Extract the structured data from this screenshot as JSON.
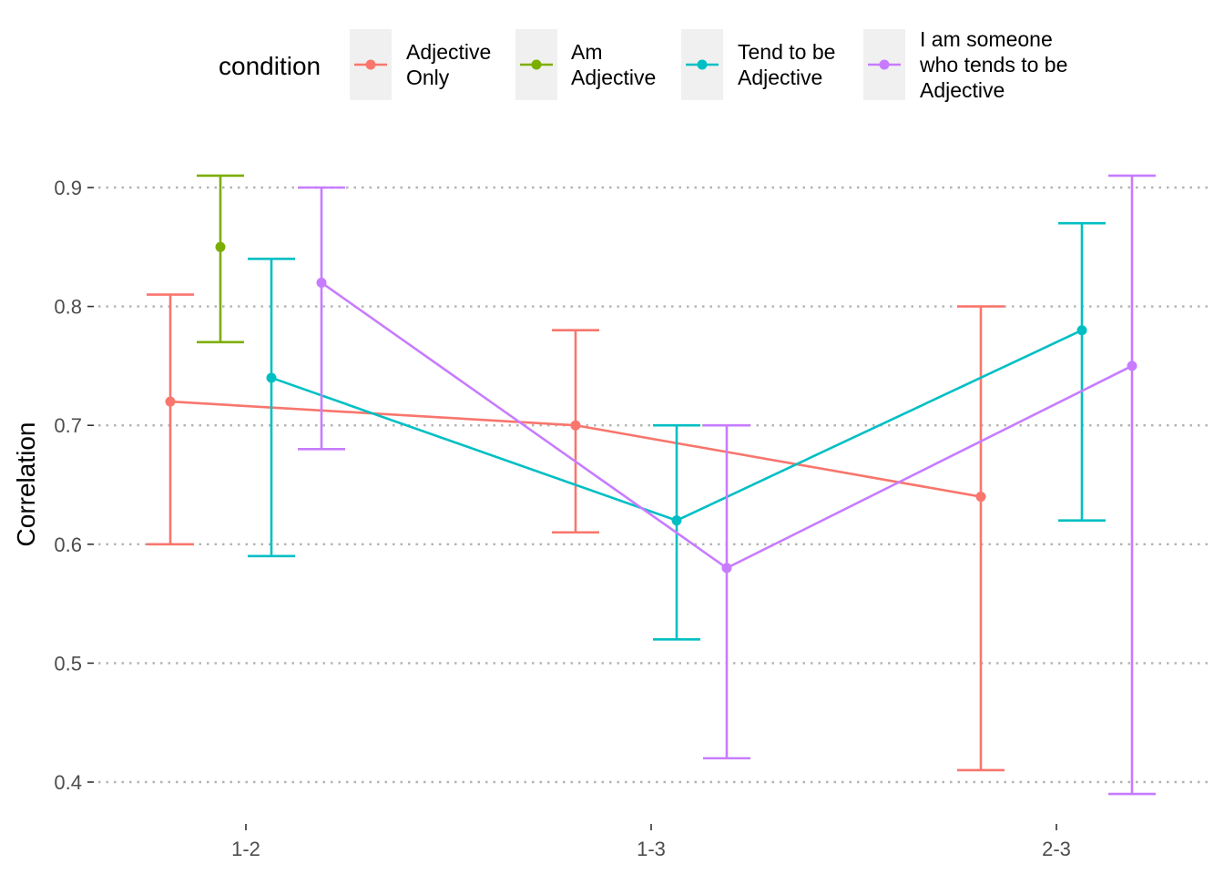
{
  "chart_data": {
    "type": "line",
    "title": "",
    "xlabel": "",
    "ylabel": "Correlation",
    "categories": [
      "1-2",
      "1-3",
      "2-3"
    ],
    "ylim": [
      0.38,
      0.93
    ],
    "yticks": [
      "0.4",
      "0.5",
      "0.6",
      "0.7",
      "0.8",
      "0.9"
    ],
    "grid": "horizontal dotted",
    "legend": {
      "title": "condition",
      "position": "top"
    },
    "series": [
      {
        "name": "Adjective\nOnly",
        "color": "#F8766D",
        "values": [
          0.72,
          0.7,
          0.64
        ],
        "lower": [
          0.6,
          0.61,
          0.41
        ],
        "upper": [
          0.81,
          0.78,
          0.8
        ]
      },
      {
        "name": "Am\nAdjective",
        "color": "#7CAE00",
        "values": [
          0.85,
          null,
          null
        ],
        "lower": [
          0.77,
          null,
          null
        ],
        "upper": [
          0.91,
          null,
          null
        ]
      },
      {
        "name": "Tend to be\nAdjective",
        "color": "#00BFC4",
        "values": [
          0.74,
          0.62,
          0.78
        ],
        "lower": [
          0.59,
          0.52,
          0.62
        ],
        "upper": [
          0.84,
          0.7,
          0.87
        ]
      },
      {
        "name": "I am someone\nwho tends to be\nAdjective",
        "color": "#C77CFF",
        "values": [
          0.82,
          0.58,
          0.75
        ],
        "lower": [
          0.68,
          0.42,
          0.39
        ],
        "upper": [
          0.9,
          0.7,
          0.91
        ]
      }
    ]
  }
}
